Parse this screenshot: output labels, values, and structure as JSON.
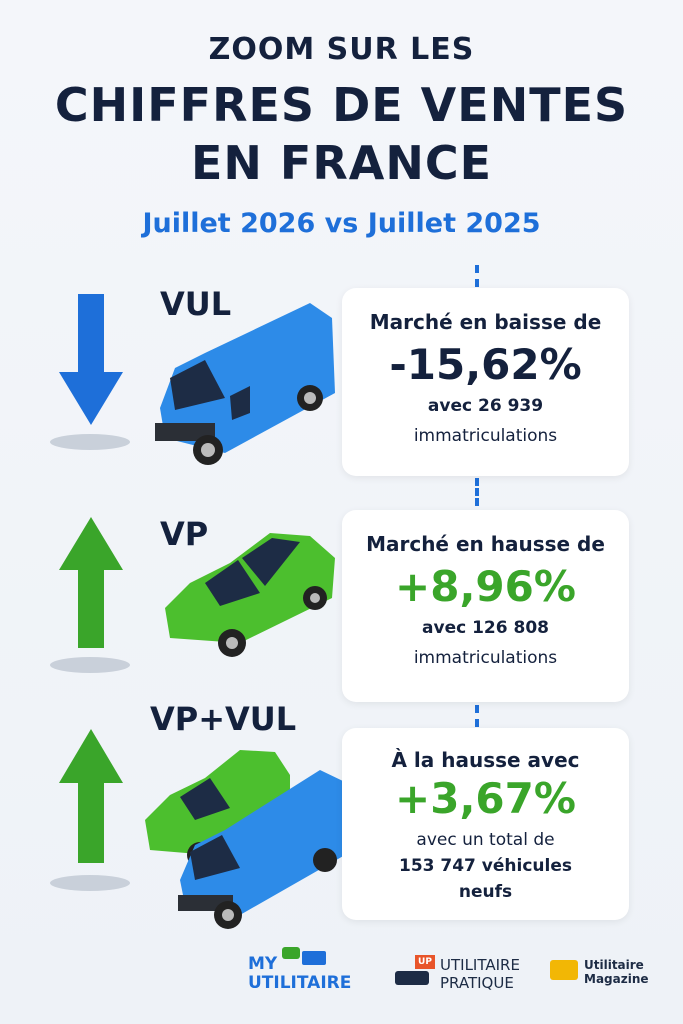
{
  "header": {
    "kicker": "ZOOM SUR LES",
    "title_line1": "CHIFFRES DE VENTES",
    "title_line2": "EN FRANCE",
    "subtitle": "Juillet 2026 vs Juillet 2025"
  },
  "sections": [
    {
      "label": "VUL",
      "heading": "Marché en baisse de",
      "figure": "-15,62%",
      "detail_1": "avec 26 939",
      "detail_2": "immatriculations"
    },
    {
      "label": "VP",
      "heading": "Marché en hausse de",
      "figure": "+8,96%",
      "detail_1": "avec 126 808",
      "detail_2": "immatriculations"
    },
    {
      "label": "VP+VUL",
      "heading": "À la hausse avec",
      "figure": "+3,67%",
      "detail_1": "avec un total de",
      "detail_2": "153 747 véhicules",
      "detail_3": "neufs"
    }
  ],
  "logos": [
    {
      "line1": "MY",
      "line2": "UTILITAIRE"
    },
    {
      "badge": "UP",
      "line1": "UTILITAIRE",
      "line2": "PRATIQUE"
    },
    {
      "line1": "Utilitaire",
      "line2": "Magazine"
    }
  ]
}
